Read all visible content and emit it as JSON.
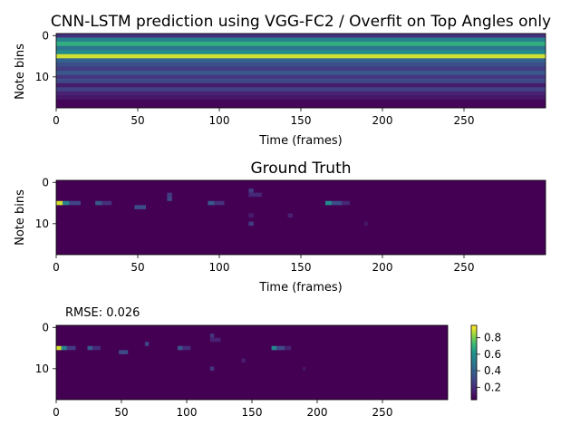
{
  "chart_data": [
    {
      "type": "heatmap",
      "title": "CNN-LSTM prediction using VGG-FC2 / Overfit on Top Angles only",
      "xlabel": "Time (frames)",
      "ylabel": "Note bins",
      "xlim": [
        0,
        300
      ],
      "ylim": [
        0,
        18
      ],
      "x_ticks": [
        "0",
        "50",
        "100",
        "150",
        "200",
        "250"
      ],
      "y_ticks": [
        "0",
        "10"
      ],
      "colormap": "viridis",
      "row_values": [
        0.18,
        0.55,
        0.72,
        0.48,
        0.6,
        0.95,
        0.4,
        0.3,
        0.22,
        0.34,
        0.2,
        0.28,
        0.1,
        0.24,
        0.12,
        0.08,
        0.02,
        0.02
      ]
    },
    {
      "type": "heatmap",
      "title": "Ground Truth",
      "xlabel": "Time (frames)",
      "ylabel": "Note bins",
      "xlim": [
        0,
        300
      ],
      "ylim": [
        0,
        18
      ],
      "x_ticks": [
        "0",
        "50",
        "100",
        "150",
        "200",
        "250"
      ],
      "y_ticks": [
        "0",
        "10"
      ],
      "colormap": "viridis",
      "background_value": 0.0,
      "events": [
        {
          "row": 5,
          "start": 0,
          "end": 4,
          "value": 0.95
        },
        {
          "row": 5,
          "start": 4,
          "end": 8,
          "value": 0.55
        },
        {
          "row": 5,
          "start": 8,
          "end": 15,
          "value": 0.25
        },
        {
          "row": 5,
          "start": 24,
          "end": 28,
          "value": 0.35
        },
        {
          "row": 5,
          "start": 28,
          "end": 34,
          "value": 0.18
        },
        {
          "row": 6,
          "start": 48,
          "end": 55,
          "value": 0.3
        },
        {
          "row": 3,
          "start": 68,
          "end": 71,
          "value": 0.22
        },
        {
          "row": 4,
          "start": 68,
          "end": 71,
          "value": 0.28
        },
        {
          "row": 5,
          "start": 93,
          "end": 97,
          "value": 0.35
        },
        {
          "row": 5,
          "start": 97,
          "end": 103,
          "value": 0.18
        },
        {
          "row": 2,
          "start": 118,
          "end": 121,
          "value": 0.22
        },
        {
          "row": 3,
          "start": 118,
          "end": 126,
          "value": 0.14
        },
        {
          "row": 8,
          "start": 118,
          "end": 121,
          "value": 0.1
        },
        {
          "row": 10,
          "start": 118,
          "end": 121,
          "value": 0.22
        },
        {
          "row": 8,
          "start": 142,
          "end": 145,
          "value": 0.12
        },
        {
          "row": 5,
          "start": 165,
          "end": 169,
          "value": 0.6
        },
        {
          "row": 5,
          "start": 169,
          "end": 175,
          "value": 0.3
        },
        {
          "row": 5,
          "start": 175,
          "end": 180,
          "value": 0.14
        },
        {
          "row": 10,
          "start": 189,
          "end": 191,
          "value": 0.08
        }
      ]
    },
    {
      "type": "heatmap",
      "title": "RMSE: 0.026",
      "xlabel": "",
      "ylabel": "",
      "xlim": [
        0,
        300
      ],
      "ylim": [
        0,
        18
      ],
      "x_ticks": [
        "0",
        "50",
        "100",
        "150",
        "200",
        "250"
      ],
      "y_ticks": [
        "0",
        "10"
      ],
      "colormap": "viridis",
      "background_value": 0.0,
      "colorbar": {
        "ticks": [
          "0.2",
          "0.4",
          "0.6",
          "0.8"
        ],
        "range": [
          0.05,
          0.95
        ]
      },
      "events": [
        {
          "row": 5,
          "start": 0,
          "end": 4,
          "value": 0.95
        },
        {
          "row": 5,
          "start": 4,
          "end": 8,
          "value": 0.55
        },
        {
          "row": 5,
          "start": 8,
          "end": 15,
          "value": 0.22
        },
        {
          "row": 5,
          "start": 24,
          "end": 28,
          "value": 0.35
        },
        {
          "row": 5,
          "start": 28,
          "end": 34,
          "value": 0.16
        },
        {
          "row": 6,
          "start": 48,
          "end": 55,
          "value": 0.28
        },
        {
          "row": 4,
          "start": 68,
          "end": 71,
          "value": 0.26
        },
        {
          "row": 5,
          "start": 93,
          "end": 97,
          "value": 0.33
        },
        {
          "row": 5,
          "start": 97,
          "end": 103,
          "value": 0.16
        },
        {
          "row": 2,
          "start": 118,
          "end": 121,
          "value": 0.2
        },
        {
          "row": 3,
          "start": 118,
          "end": 126,
          "value": 0.12
        },
        {
          "row": 10,
          "start": 118,
          "end": 121,
          "value": 0.2
        },
        {
          "row": 8,
          "start": 142,
          "end": 145,
          "value": 0.1
        },
        {
          "row": 5,
          "start": 165,
          "end": 169,
          "value": 0.58
        },
        {
          "row": 5,
          "start": 169,
          "end": 175,
          "value": 0.28
        },
        {
          "row": 5,
          "start": 175,
          "end": 180,
          "value": 0.12
        },
        {
          "row": 10,
          "start": 189,
          "end": 191,
          "value": 0.08
        }
      ]
    }
  ]
}
